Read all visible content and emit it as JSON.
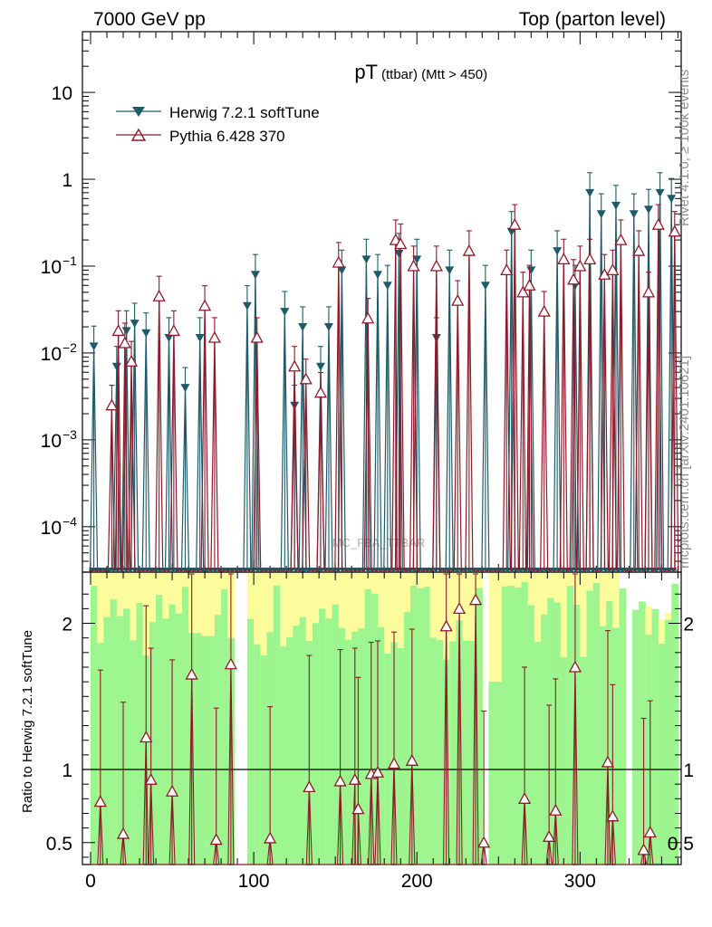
{
  "header": {
    "left": "7000 GeV pp",
    "right": "Top (parton level)"
  },
  "side_labels": {
    "rivet": "Rivet 4.1.0, ≥ 100k events",
    "mcplots": "mcplots.cern.ch [arXiv:2401.10621]"
  },
  "chart_data": {
    "type": "scatter",
    "title": "pT",
    "title_sub": "(ttbar) (Mtt > 450)",
    "watermark": "MC_FBA_TTBAR",
    "xlabel": "",
    "ylabel_main": "",
    "ylabel_ratio": "Ratio to Herwig 7.2.1 softTune",
    "xlim": [
      -5,
      362
    ],
    "ylim_main": [
      3e-05,
      50
    ],
    "ylim_ratio": [
      0.35,
      2.35
    ],
    "x_ticks": [
      0,
      100,
      200,
      300
    ],
    "y_ticks_main": [
      "10^-4",
      "10^-3",
      "10^-2",
      "10^-1",
      "1",
      "10"
    ],
    "y_ticks_ratio": [
      0.5,
      1,
      2
    ],
    "legend_position": "top-left",
    "colors": {
      "herwig": "#1f5a68",
      "pythia": "#8c1a2a",
      "band_inner": "#9cf58f",
      "band_outer": "#fcfc9c"
    },
    "series": [
      {
        "name": "Herwig 7.2.1 softTune",
        "marker": "filled-triangle-down",
        "x": [
          2,
          16,
          22,
          27,
          34,
          48,
          58,
          67,
          96,
          101,
          119,
          125,
          130,
          141,
          146,
          154,
          169,
          176,
          182,
          189,
          200,
          212,
          220,
          242,
          258,
          270,
          286,
          297,
          306,
          313,
          322,
          333,
          342,
          349,
          356
        ],
        "values": [
          0.012,
          0.007,
          0.018,
          0.022,
          0.017,
          0.015,
          0.004,
          0.015,
          0.035,
          0.08,
          0.03,
          0.0025,
          0.02,
          0.007,
          0.02,
          0.09,
          0.12,
          0.08,
          0.06,
          0.14,
          0.12,
          0.015,
          0.09,
          0.06,
          0.25,
          0.09,
          0.15,
          0.06,
          0.7,
          0.4,
          0.5,
          0.4,
          0.45,
          0.7,
          0.6
        ]
      },
      {
        "name": "Pythia 6.428 370",
        "marker": "open-triangle-up",
        "x": [
          13,
          17,
          21,
          25,
          42,
          51,
          70,
          76,
          102,
          125,
          132,
          141,
          152,
          170,
          187,
          190,
          198,
          212,
          225,
          232,
          255,
          260,
          265,
          269,
          278,
          290,
          296,
          300,
          306,
          315,
          320,
          325,
          336,
          342,
          348,
          358
        ],
        "values": [
          0.0025,
          0.018,
          0.013,
          0.008,
          0.045,
          0.018,
          0.035,
          0.015,
          0.015,
          0.007,
          0.005,
          0.0035,
          0.11,
          0.025,
          0.2,
          0.18,
          0.1,
          0.1,
          0.04,
          0.15,
          0.09,
          0.3,
          0.05,
          0.06,
          0.03,
          0.12,
          0.07,
          0.1,
          0.12,
          0.08,
          0.09,
          0.2,
          0.15,
          0.05,
          0.3,
          0.25
        ]
      }
    ],
    "ratio": {
      "reference": "Herwig 7.2.1 softTune",
      "x": [
        6,
        20,
        34,
        37,
        50,
        62,
        77,
        86,
        110,
        134,
        153,
        162,
        164,
        172,
        176,
        186,
        197,
        218,
        226,
        236,
        241,
        266,
        281,
        285,
        297,
        317,
        320,
        339,
        343
      ],
      "values": [
        0.78,
        0.56,
        1.22,
        0.93,
        0.85,
        1.65,
        0.52,
        1.72,
        0.53,
        0.88,
        0.92,
        0.93,
        0.73,
        0.97,
        0.98,
        1.04,
        1.06,
        1.98,
        2.1,
        2.16,
        0.5,
        0.8,
        0.54,
        0.72,
        1.7,
        1.05,
        0.68,
        0.45,
        0.57
      ]
    }
  }
}
